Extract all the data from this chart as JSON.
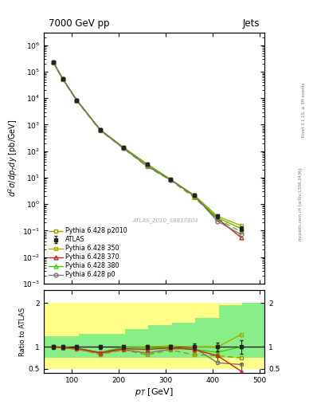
{
  "title_left": "7000 GeV pp",
  "title_right": "Jets",
  "watermark": "ATLAS_2010_S8817804",
  "rivet_label": "Rivet 3.1.10, ≥ 3M events",
  "mcplots_label": "mcplots.cern.ch [arXiv:1306.3436]",
  "xlabel": "$p_T$ [GeV]",
  "ylabel_main": "$d^2\\sigma/dp_T dy$ [pb/GeV]",
  "ylabel_ratio": "Ratio to ATLAS",
  "pt_values": [
    60,
    80,
    110,
    160,
    210,
    260,
    310,
    360,
    410,
    460
  ],
  "atlas_y": [
    230000.0,
    55000.0,
    8500.0,
    650.0,
    135.0,
    32.0,
    8.5,
    2.2,
    0.35,
    0.12
  ],
  "atlas_yerr": [
    25000.0,
    6000.0,
    800.0,
    80.0,
    12.0,
    2.8,
    0.7,
    0.22,
    0.055,
    0.025
  ],
  "py350_y": [
    230000.0,
    55000.0,
    8500.0,
    650.0,
    135.0,
    32.0,
    8.5,
    2.2,
    0.35,
    0.155
  ],
  "py370_y": [
    230000.0,
    55000.0,
    8500.0,
    650.0,
    135.0,
    32.0,
    8.5,
    2.05,
    0.285,
    0.055
  ],
  "py380_y": [
    230000.0,
    55000.0,
    8500.0,
    650.0,
    135.0,
    32.0,
    8.5,
    2.05,
    0.305,
    0.12
  ],
  "pyp0_y": [
    230000.0,
    55000.0,
    8500.0,
    620.0,
    127.0,
    27.5,
    8.1,
    2.15,
    0.225,
    0.072
  ],
  "pyp2010_y": [
    230000.0,
    53000.0,
    8000.0,
    600.0,
    125.0,
    26.2,
    7.9,
    1.8,
    0.275,
    0.09
  ],
  "ratio_pt": [
    60,
    80,
    110,
    160,
    210,
    260,
    310,
    360,
    410,
    460
  ],
  "ratio_py350": [
    1.0,
    0.99,
    0.97,
    0.86,
    0.98,
    1.0,
    1.02,
    1.0,
    1.0,
    1.28
  ],
  "ratio_py370": [
    1.0,
    0.99,
    0.97,
    0.87,
    0.96,
    0.94,
    0.98,
    0.94,
    0.8,
    0.45
  ],
  "ratio_py380": [
    1.0,
    0.99,
    0.97,
    0.87,
    1.0,
    0.97,
    1.0,
    0.94,
    0.88,
    1.0
  ],
  "ratio_pyp0": [
    1.0,
    0.98,
    0.95,
    0.85,
    0.94,
    0.86,
    0.95,
    0.98,
    0.64,
    0.6
  ],
  "ratio_pyp2010": [
    1.0,
    0.97,
    0.95,
    0.83,
    0.93,
    0.82,
    0.93,
    0.82,
    0.8,
    0.75
  ],
  "atlas_ratio_yerr": [
    0.05,
    0.05,
    0.05,
    0.05,
    0.05,
    0.05,
    0.05,
    0.07,
    0.1,
    0.15
  ],
  "py370_ratio_yerr": [
    0.02,
    0.02,
    0.02,
    0.02,
    0.03,
    0.05,
    0.05,
    0.08,
    0.12,
    0.18
  ],
  "color_atlas": "#222222",
  "color_py350": "#aaaa00",
  "color_py370": "#cc2222",
  "color_py380": "#44cc00",
  "color_pyp0": "#777777",
  "color_pyp2010": "#999900",
  "xlim": [
    40,
    510
  ],
  "ylim_main": [
    0.001,
    3000000.0
  ],
  "ylim_ratio": [
    0.4,
    2.3
  ],
  "band_edges": [
    40,
    75,
    115,
    162,
    213,
    263,
    313,
    363,
    413,
    463,
    510
  ],
  "band_yellow_lo": [
    0.5,
    0.5,
    0.5,
    0.5,
    0.5,
    0.5,
    0.5,
    0.5,
    0.5,
    0.5
  ],
  "band_yellow_hi": [
    2.0,
    2.0,
    2.0,
    2.0,
    2.0,
    2.0,
    2.0,
    2.0,
    2.0,
    2.0
  ],
  "band_green_lo": [
    0.75,
    0.75,
    0.75,
    0.75,
    0.75,
    0.75,
    0.75,
    0.75,
    0.75,
    0.75
  ],
  "band_green_hi": [
    1.25,
    1.25,
    1.3,
    1.3,
    1.4,
    1.5,
    1.55,
    1.65,
    1.95,
    2.0
  ],
  "band_green_last_green": true
}
